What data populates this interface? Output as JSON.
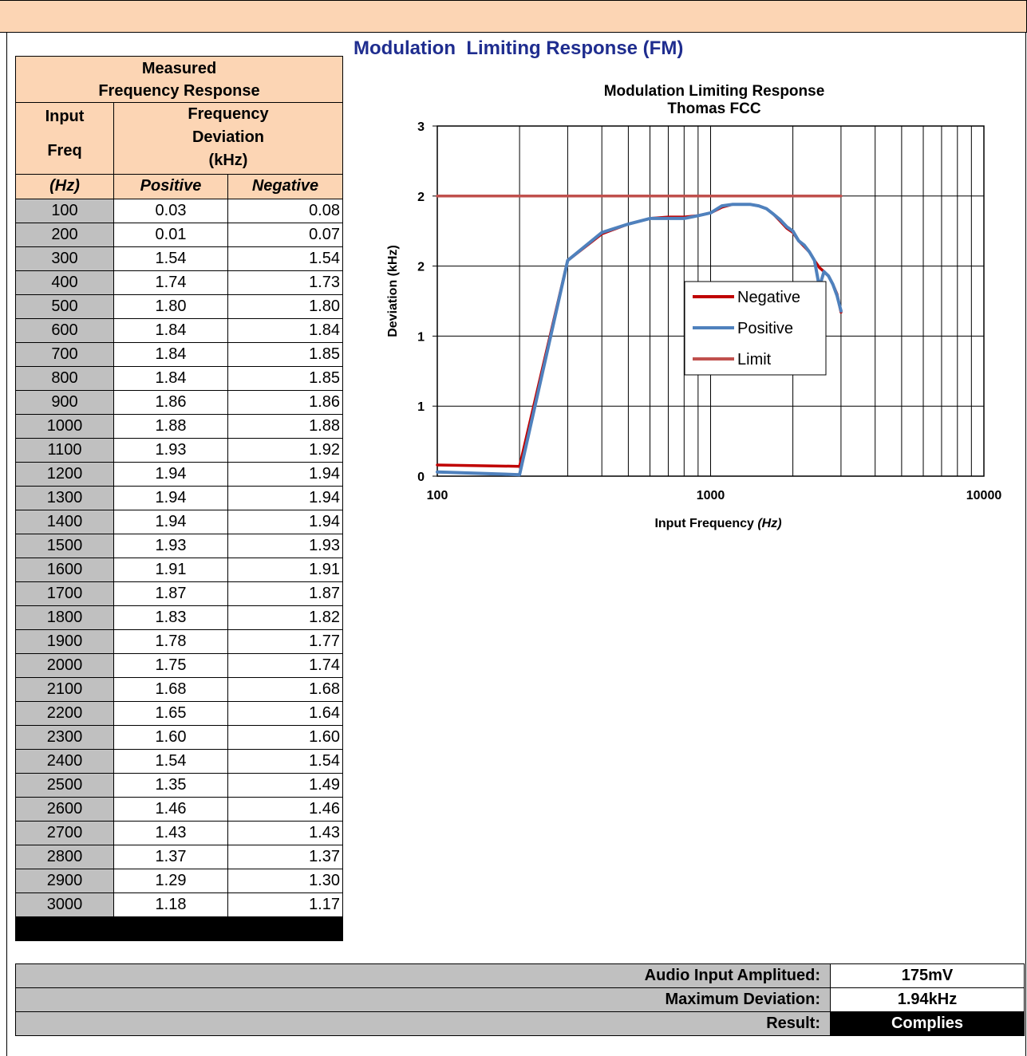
{
  "header": {
    "title": "Modulation  Limiting Response (FM)"
  },
  "table": {
    "title": [
      "Measured",
      "Frequency Response"
    ],
    "input_header": [
      "Input",
      "Freq"
    ],
    "deviation_header": [
      "Frequency",
      "Deviation",
      "(kHz)"
    ],
    "unit_row": [
      "(Hz)",
      "Positive",
      "Negative"
    ],
    "rows": [
      [
        "100",
        "0.03",
        "0.08"
      ],
      [
        "200",
        "0.01",
        "0.07"
      ],
      [
        "300",
        "1.54",
        "1.54"
      ],
      [
        "400",
        "1.74",
        "1.73"
      ],
      [
        "500",
        "1.80",
        "1.80"
      ],
      [
        "600",
        "1.84",
        "1.84"
      ],
      [
        "700",
        "1.84",
        "1.85"
      ],
      [
        "800",
        "1.84",
        "1.85"
      ],
      [
        "900",
        "1.86",
        "1.86"
      ],
      [
        "1000",
        "1.88",
        "1.88"
      ],
      [
        "1100",
        "1.93",
        "1.92"
      ],
      [
        "1200",
        "1.94",
        "1.94"
      ],
      [
        "1300",
        "1.94",
        "1.94"
      ],
      [
        "1400",
        "1.94",
        "1.94"
      ],
      [
        "1500",
        "1.93",
        "1.93"
      ],
      [
        "1600",
        "1.91",
        "1.91"
      ],
      [
        "1700",
        "1.87",
        "1.87"
      ],
      [
        "1800",
        "1.83",
        "1.82"
      ],
      [
        "1900",
        "1.78",
        "1.77"
      ],
      [
        "2000",
        "1.75",
        "1.74"
      ],
      [
        "2100",
        "1.68",
        "1.68"
      ],
      [
        "2200",
        "1.65",
        "1.64"
      ],
      [
        "2300",
        "1.60",
        "1.60"
      ],
      [
        "2400",
        "1.54",
        "1.54"
      ],
      [
        "2500",
        "1.35",
        "1.49"
      ],
      [
        "2600",
        "1.46",
        "1.46"
      ],
      [
        "2700",
        "1.43",
        "1.43"
      ],
      [
        "2800",
        "1.37",
        "1.37"
      ],
      [
        "2900",
        "1.29",
        "1.30"
      ],
      [
        "3000",
        "1.18",
        "1.17"
      ]
    ]
  },
  "summary": [
    [
      "Audio Input Amplitued:",
      "175mV"
    ],
    [
      "Maximum Deviation:",
      "1.94kHz"
    ],
    [
      "Result:",
      "Complies"
    ]
  ],
  "chart_data": {
    "type": "line",
    "title": [
      "Modulation Limiting Response",
      "Thomas FCC"
    ],
    "x_label": "Input Frequency",
    "x_label_unit": "(Hz)",
    "y_label": "Deviation (kHz)",
    "x_log": true,
    "grid": true,
    "x": [
      100,
      200,
      300,
      400,
      500,
      600,
      700,
      800,
      900,
      1000,
      1100,
      1200,
      1300,
      1400,
      1500,
      1600,
      1700,
      1800,
      1900,
      2000,
      2100,
      2200,
      2300,
      2400,
      2500,
      2600,
      2700,
      2800,
      2900,
      3000
    ],
    "series": [
      {
        "name": "Negative",
        "color": "#c00000",
        "values": [
          0.08,
          0.07,
          1.54,
          1.73,
          1.8,
          1.84,
          1.85,
          1.85,
          1.86,
          1.88,
          1.92,
          1.94,
          1.94,
          1.94,
          1.93,
          1.91,
          1.87,
          1.82,
          1.77,
          1.74,
          1.68,
          1.64,
          1.6,
          1.54,
          1.49,
          1.46,
          1.43,
          1.37,
          1.3,
          1.17
        ]
      },
      {
        "name": "Positive",
        "color": "#4f81bd",
        "values": [
          0.03,
          0.01,
          1.54,
          1.74,
          1.8,
          1.84,
          1.84,
          1.84,
          1.86,
          1.88,
          1.93,
          1.94,
          1.94,
          1.94,
          1.93,
          1.91,
          1.87,
          1.83,
          1.78,
          1.75,
          1.68,
          1.65,
          1.6,
          1.54,
          1.35,
          1.46,
          1.43,
          1.37,
          1.29,
          1.18
        ]
      },
      {
        "name": "Limit",
        "color": "#c0504d",
        "values": [
          2,
          2,
          2,
          2,
          2,
          2,
          2,
          2,
          2,
          2,
          2,
          2,
          2,
          2,
          2,
          2,
          2,
          2,
          2,
          2,
          2,
          2,
          2,
          2,
          2,
          2,
          2,
          2,
          2,
          2
        ]
      }
    ],
    "xlim": [
      100,
      10000
    ],
    "xticks": [
      100,
      1000,
      10000
    ],
    "ylim": [
      0,
      2.5
    ],
    "yticks": [
      0,
      {
        "value": 0.5,
        "label": "1"
      },
      1,
      {
        "value": 1.5,
        "label": "2"
      },
      2,
      {
        "value": 2.5,
        "label": "3"
      }
    ],
    "legend": "right"
  }
}
